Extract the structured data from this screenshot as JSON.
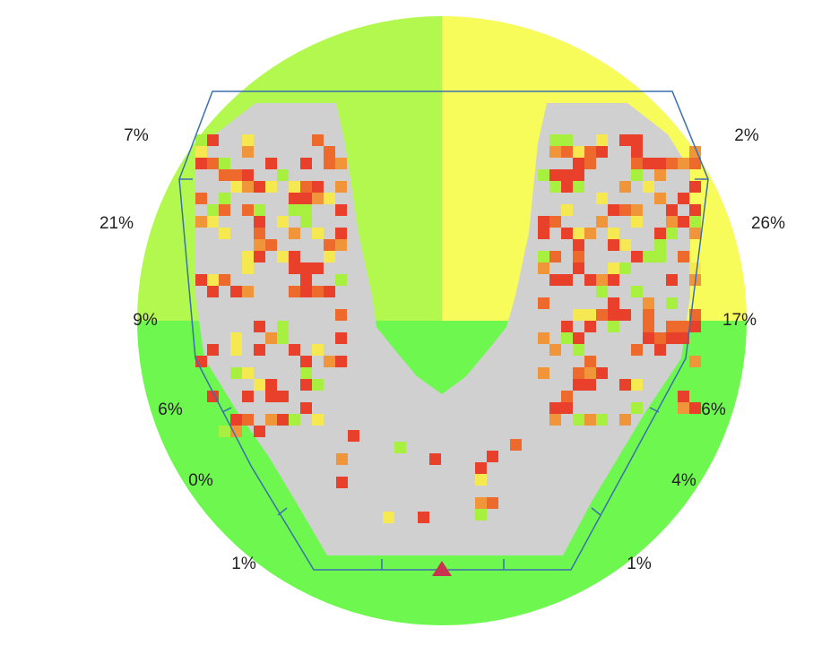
{
  "left_labels": [
    "7%",
    "21%",
    "9%",
    "6%",
    "0%",
    "1%"
  ],
  "right_labels": [
    "2%",
    "26%",
    "17%",
    "6%",
    "4%",
    "1%"
  ]
}
